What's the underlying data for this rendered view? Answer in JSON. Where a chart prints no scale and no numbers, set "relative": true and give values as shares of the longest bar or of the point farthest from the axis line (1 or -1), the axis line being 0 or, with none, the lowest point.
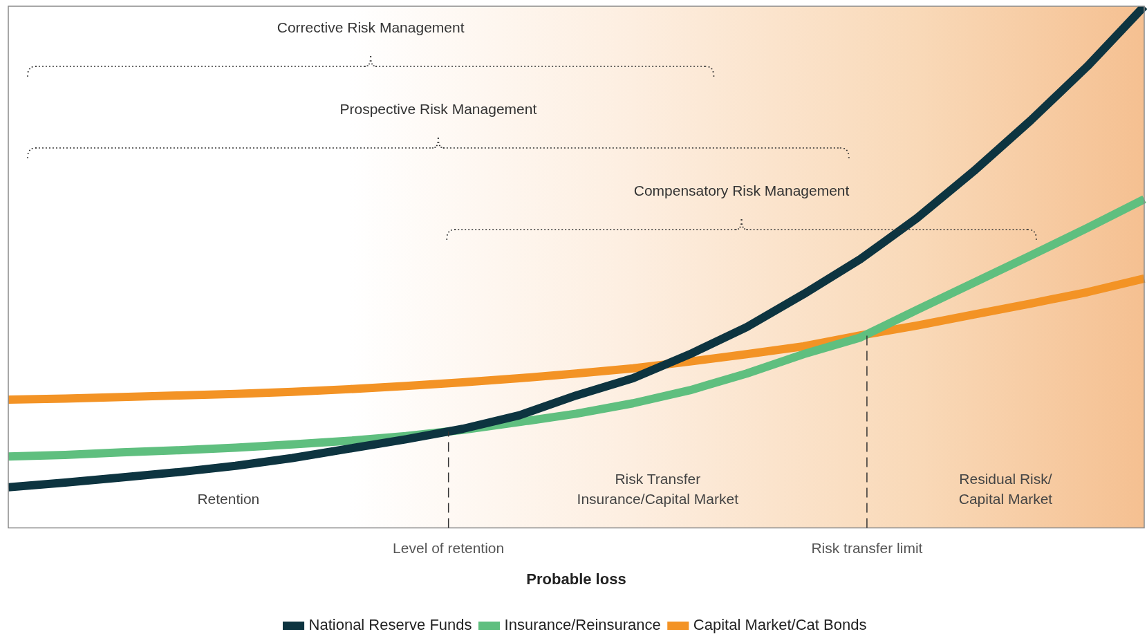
{
  "chart_data": {
    "type": "line",
    "relative": true,
    "xlabel": "Probable loss",
    "categories": [
      null,
      null,
      null,
      null,
      null,
      null,
      null,
      null,
      null,
      null,
      null,
      null,
      null,
      null,
      null,
      null,
      null,
      null,
      null,
      null,
      null
    ],
    "legend": "bottom",
    "marker": "none",
    "line_style": "solid",
    "series": [
      {
        "name": "National Reserve Funds",
        "color": "#0d3440",
        "values": [
          0.078,
          0.087,
          0.097,
          0.107,
          0.119,
          0.134,
          0.152,
          0.17,
          0.19,
          0.216,
          0.254,
          0.287,
          0.333,
          0.385,
          0.448,
          0.515,
          0.594,
          0.684,
          0.781,
          0.885,
          1
        ]
      },
      {
        "name": "Insurance/Reinsurance",
        "color": "#5fbf7f",
        "values": [
          0.137,
          0.14,
          0.145,
          0.149,
          0.154,
          0.16,
          0.167,
          0.176,
          0.188,
          0.203,
          0.219,
          0.239,
          0.264,
          0.296,
          0.333,
          0.365,
          0.418,
          0.47,
          0.522,
          0.575,
          0.63
        ]
      },
      {
        "name": "Capital Market/Cat Bonds",
        "color": "#f39325",
        "values": [
          0.246,
          0.248,
          0.251,
          0.254,
          0.257,
          0.261,
          0.266,
          0.272,
          0.279,
          0.287,
          0.296,
          0.306,
          0.319,
          0.333,
          0.348,
          0.369,
          0.388,
          0.409,
          0.43,
          0.452,
          0.478
        ]
      }
    ],
    "ref_lines": [
      {
        "axis": "x",
        "label": "Level of retention",
        "line_style": "dashed",
        "color": "#333333"
      },
      {
        "axis": "x",
        "label": "Risk transfer limit",
        "line_style": "dashed",
        "color": "#333333"
      }
    ],
    "annotations": [
      "Corrective Risk Management",
      "Prospective Risk Management",
      "Compensatory Risk Management",
      "Retention",
      "Risk Transfer\nInsurance/Capital Market",
      "Residual Risk/\nCapital Market"
    ]
  }
}
